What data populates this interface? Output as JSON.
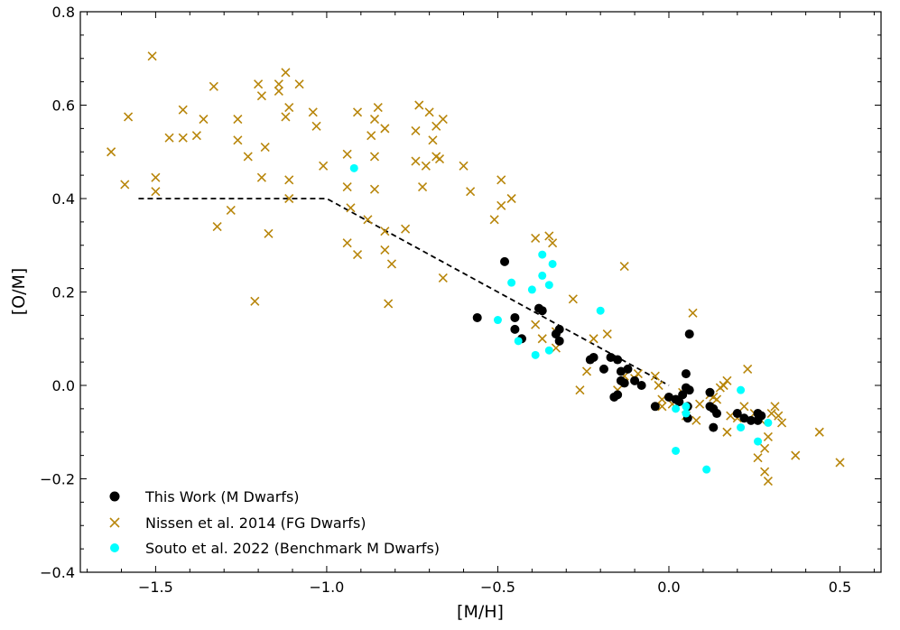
{
  "chart_data": {
    "type": "scatter",
    "title": "",
    "xlabel": "[M/H]",
    "ylabel": "[O/M]",
    "xlim": [
      -1.72,
      0.62
    ],
    "ylim": [
      -0.4,
      0.8
    ],
    "xticks": [
      -1.5,
      -1.0,
      -0.5,
      0.0,
      0.5
    ],
    "xtick_labels": [
      "−1.5",
      "−1.0",
      "−0.5",
      "0.0",
      "0.5"
    ],
    "yticks": [
      -0.4,
      -0.2,
      0.0,
      0.2,
      0.4,
      0.6,
      0.8
    ],
    "ytick_labels": [
      "−0.4",
      "−0.2",
      "0.0",
      "0.2",
      "0.4",
      "0.6",
      "0.8"
    ],
    "legend_position": "bottom-left",
    "series": [
      {
        "name": "This Work (M Dwarfs)",
        "marker": "circle",
        "color": "#000000",
        "points": [
          [
            -0.56,
            0.145
          ],
          [
            -0.48,
            0.265
          ],
          [
            -0.45,
            0.145
          ],
          [
            -0.45,
            0.12
          ],
          [
            -0.43,
            0.1
          ],
          [
            -0.38,
            0.165
          ],
          [
            -0.37,
            0.16
          ],
          [
            -0.33,
            0.11
          ],
          [
            -0.32,
            0.095
          ],
          [
            -0.32,
            0.12
          ],
          [
            -0.23,
            0.055
          ],
          [
            -0.22,
            0.06
          ],
          [
            -0.19,
            0.035
          ],
          [
            -0.17,
            0.06
          ],
          [
            -0.15,
            0.055
          ],
          [
            -0.14,
            0.03
          ],
          [
            -0.14,
            0.01
          ],
          [
            -0.13,
            0.005
          ],
          [
            -0.16,
            -0.025
          ],
          [
            -0.15,
            -0.02
          ],
          [
            -0.12,
            0.035
          ],
          [
            -0.1,
            0.01
          ],
          [
            -0.08,
            0.0
          ],
          [
            -0.04,
            -0.045
          ],
          [
            0.0,
            -0.025
          ],
          [
            0.02,
            -0.03
          ],
          [
            0.03,
            -0.035
          ],
          [
            0.04,
            -0.02
          ],
          [
            0.05,
            0.025
          ],
          [
            0.05,
            -0.005
          ],
          [
            0.06,
            -0.01
          ],
          [
            0.055,
            -0.045
          ],
          [
            0.055,
            -0.07
          ],
          [
            0.06,
            0.11
          ],
          [
            0.12,
            -0.015
          ],
          [
            0.12,
            -0.045
          ],
          [
            0.13,
            -0.09
          ],
          [
            0.13,
            -0.05
          ],
          [
            0.14,
            -0.06
          ],
          [
            0.2,
            -0.06
          ],
          [
            0.22,
            -0.07
          ],
          [
            0.24,
            -0.075
          ],
          [
            0.26,
            -0.06
          ],
          [
            0.26,
            -0.075
          ],
          [
            0.27,
            -0.065
          ]
        ]
      },
      {
        "name": "Nissen et al. 2014 (FG Dwarfs)",
        "marker": "x",
        "color": "#b8860b",
        "points": [
          [
            -1.63,
            0.5
          ],
          [
            -1.59,
            0.43
          ],
          [
            -1.58,
            0.575
          ],
          [
            -1.51,
            0.705
          ],
          [
            -1.5,
            0.445
          ],
          [
            -1.5,
            0.415
          ],
          [
            -1.46,
            0.53
          ],
          [
            -1.42,
            0.59
          ],
          [
            -1.42,
            0.53
          ],
          [
            -1.38,
            0.535
          ],
          [
            -1.36,
            0.57
          ],
          [
            -1.33,
            0.64
          ],
          [
            -1.32,
            0.34
          ],
          [
            -1.28,
            0.375
          ],
          [
            -1.26,
            0.57
          ],
          [
            -1.26,
            0.525
          ],
          [
            -1.23,
            0.49
          ],
          [
            -1.21,
            0.18
          ],
          [
            -1.2,
            0.645
          ],
          [
            -1.19,
            0.62
          ],
          [
            -1.19,
            0.445
          ],
          [
            -1.18,
            0.51
          ],
          [
            -1.17,
            0.325
          ],
          [
            -1.14,
            0.645
          ],
          [
            -1.14,
            0.63
          ],
          [
            -1.12,
            0.67
          ],
          [
            -1.12,
            0.575
          ],
          [
            -1.11,
            0.595
          ],
          [
            -1.11,
            0.44
          ],
          [
            -1.11,
            0.4
          ],
          [
            -1.08,
            0.645
          ],
          [
            -1.04,
            0.585
          ],
          [
            -1.03,
            0.555
          ],
          [
            -1.01,
            0.47
          ],
          [
            -0.94,
            0.305
          ],
          [
            -0.94,
            0.425
          ],
          [
            -0.94,
            0.495
          ],
          [
            -0.93,
            0.38
          ],
          [
            -0.91,
            0.585
          ],
          [
            -0.91,
            0.28
          ],
          [
            -0.88,
            0.355
          ],
          [
            -0.87,
            0.535
          ],
          [
            -0.86,
            0.49
          ],
          [
            -0.86,
            0.57
          ],
          [
            -0.86,
            0.42
          ],
          [
            -0.85,
            0.595
          ],
          [
            -0.83,
            0.55
          ],
          [
            -0.83,
            0.33
          ],
          [
            -0.83,
            0.29
          ],
          [
            -0.82,
            0.175
          ],
          [
            -0.81,
            0.26
          ],
          [
            -0.77,
            0.335
          ],
          [
            -0.74,
            0.545
          ],
          [
            -0.74,
            0.48
          ],
          [
            -0.73,
            0.6
          ],
          [
            -0.72,
            0.425
          ],
          [
            -0.71,
            0.47
          ],
          [
            -0.7,
            0.585
          ],
          [
            -0.69,
            0.525
          ],
          [
            -0.68,
            0.555
          ],
          [
            -0.68,
            0.49
          ],
          [
            -0.67,
            0.485
          ],
          [
            -0.66,
            0.57
          ],
          [
            -0.66,
            0.23
          ],
          [
            -0.6,
            0.47
          ],
          [
            -0.58,
            0.415
          ],
          [
            -0.51,
            0.355
          ],
          [
            -0.49,
            0.44
          ],
          [
            -0.49,
            0.385
          ],
          [
            -0.46,
            0.4
          ],
          [
            -0.39,
            0.315
          ],
          [
            -0.39,
            0.13
          ],
          [
            -0.37,
            0.1
          ],
          [
            -0.35,
            0.32
          ],
          [
            -0.34,
            0.305
          ],
          [
            -0.33,
            0.115
          ],
          [
            -0.33,
            0.08
          ],
          [
            -0.28,
            0.185
          ],
          [
            -0.26,
            -0.01
          ],
          [
            -0.24,
            0.03
          ],
          [
            -0.22,
            0.1
          ],
          [
            -0.18,
            0.11
          ],
          [
            -0.15,
            -0.01
          ],
          [
            -0.13,
            0.255
          ],
          [
            -0.13,
            0.02
          ],
          [
            -0.1,
            0.015
          ],
          [
            -0.09,
            0.025
          ],
          [
            -0.04,
            0.02
          ],
          [
            -0.03,
            0.0
          ],
          [
            -0.02,
            -0.03
          ],
          [
            -0.02,
            -0.045
          ],
          [
            0.01,
            -0.04
          ],
          [
            0.04,
            -0.015
          ],
          [
            0.05,
            -0.065
          ],
          [
            0.07,
            0.155
          ],
          [
            0.08,
            -0.075
          ],
          [
            0.09,
            -0.04
          ],
          [
            0.12,
            -0.02
          ],
          [
            0.13,
            -0.025
          ],
          [
            0.14,
            -0.03
          ],
          [
            0.15,
            -0.005
          ],
          [
            0.16,
            0.0
          ],
          [
            0.17,
            0.01
          ],
          [
            0.17,
            -0.1
          ],
          [
            0.18,
            -0.065
          ],
          [
            0.2,
            -0.07
          ],
          [
            0.22,
            -0.045
          ],
          [
            0.23,
            0.035
          ],
          [
            0.25,
            -0.06
          ],
          [
            0.26,
            -0.155
          ],
          [
            0.27,
            -0.075
          ],
          [
            0.28,
            -0.135
          ],
          [
            0.28,
            -0.185
          ],
          [
            0.29,
            -0.11
          ],
          [
            0.29,
            -0.205
          ],
          [
            0.3,
            -0.06
          ],
          [
            0.31,
            -0.045
          ],
          [
            0.32,
            -0.065
          ],
          [
            0.33,
            -0.08
          ],
          [
            0.37,
            -0.15
          ],
          [
            0.44,
            -0.1
          ],
          [
            0.5,
            -0.165
          ]
        ]
      },
      {
        "name": "Souto et al. 2022 (Benchmark M Dwarfs)",
        "marker": "circle",
        "color": "#00ffff",
        "points": [
          [
            -0.92,
            0.465
          ],
          [
            -0.46,
            0.22
          ],
          [
            -0.4,
            0.205
          ],
          [
            -0.37,
            0.28
          ],
          [
            -0.37,
            0.235
          ],
          [
            -0.35,
            0.215
          ],
          [
            -0.34,
            0.26
          ],
          [
            -0.2,
            0.16
          ],
          [
            -0.5,
            0.14
          ],
          [
            -0.44,
            0.095
          ],
          [
            -0.39,
            0.065
          ],
          [
            -0.35,
            0.075
          ],
          [
            0.02,
            -0.05
          ],
          [
            0.05,
            -0.045
          ],
          [
            0.05,
            -0.06
          ],
          [
            0.02,
            -0.14
          ],
          [
            0.11,
            -0.18
          ],
          [
            0.21,
            -0.01
          ],
          [
            0.21,
            -0.09
          ],
          [
            0.26,
            -0.12
          ],
          [
            0.29,
            -0.08
          ]
        ]
      }
    ],
    "reference_line": {
      "style": "dashed",
      "color": "#000000",
      "points": [
        [
          -1.55,
          0.4
        ],
        [
          -1.0,
          0.4
        ],
        [
          0.0,
          0.0
        ]
      ]
    }
  }
}
